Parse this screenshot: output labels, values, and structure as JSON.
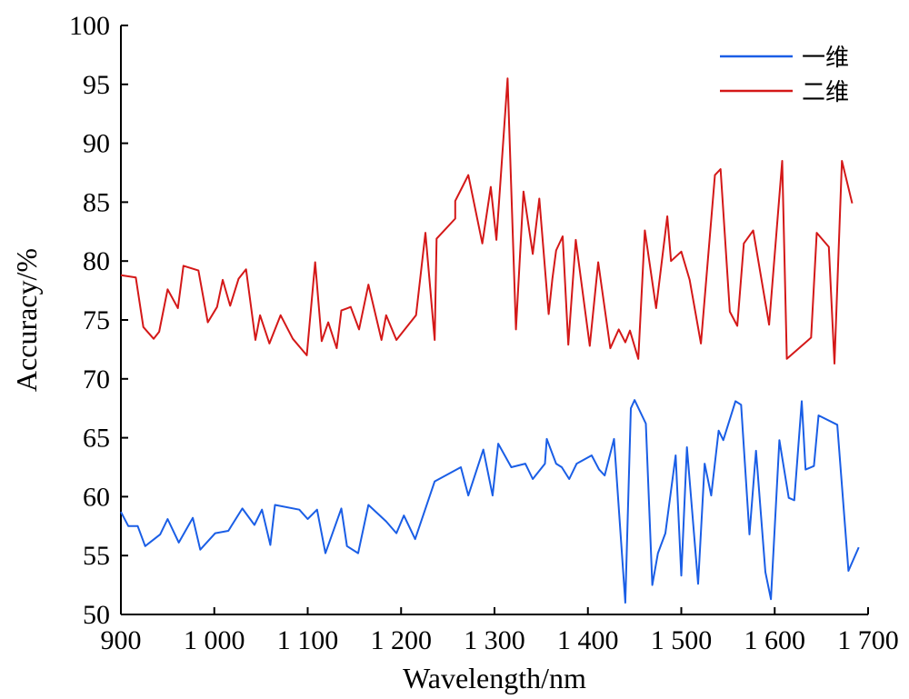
{
  "chart_data": {
    "type": "line",
    "xlabel": "Wavelength/nm",
    "ylabel": "Accuracy/%",
    "xlim": [
      900,
      1700
    ],
    "ylim": [
      50,
      100
    ],
    "x_ticks": [
      900,
      1000,
      1100,
      1200,
      1300,
      1400,
      1500,
      1600,
      1700
    ],
    "x_tick_labels": [
      "900",
      "1 000",
      "1 100",
      "1 200",
      "1 300",
      "1 400",
      "1 500",
      "1 600",
      "1 700"
    ],
    "y_ticks": [
      50,
      55,
      60,
      65,
      70,
      75,
      80,
      85,
      90,
      95,
      100
    ],
    "y_tick_labels": [
      "50",
      "55",
      "60",
      "65",
      "70",
      "75",
      "80",
      "85",
      "90",
      "95",
      "100"
    ],
    "grid": false,
    "legend_position": "top-right",
    "series": [
      {
        "name": "一维",
        "color": "#1a5ee6",
        "points": [
          [
            900,
            58.7
          ],
          [
            908,
            57.5
          ],
          [
            918,
            57.5
          ],
          [
            926,
            55.8
          ],
          [
            942,
            56.8
          ],
          [
            950,
            58.1
          ],
          [
            962,
            56.1
          ],
          [
            977,
            58.2
          ],
          [
            985,
            55.5
          ],
          [
            1001,
            56.9
          ],
          [
            1015,
            57.1
          ],
          [
            1030,
            59.0
          ],
          [
            1043,
            57.6
          ],
          [
            1051,
            58.9
          ],
          [
            1060,
            55.9
          ],
          [
            1065,
            59.3
          ],
          [
            1091,
            58.9
          ],
          [
            1100,
            58.1
          ],
          [
            1110,
            58.9
          ],
          [
            1119,
            55.2
          ],
          [
            1136,
            59.0
          ],
          [
            1142,
            55.8
          ],
          [
            1154,
            55.2
          ],
          [
            1165,
            59.3
          ],
          [
            1184,
            57.9
          ],
          [
            1195,
            56.9
          ],
          [
            1203,
            58.4
          ],
          [
            1215,
            56.4
          ],
          [
            1236,
            61.3
          ],
          [
            1264,
            62.5
          ],
          [
            1272,
            60.1
          ],
          [
            1288,
            64.0
          ],
          [
            1298,
            60.1
          ],
          [
            1304,
            64.5
          ],
          [
            1318,
            62.5
          ],
          [
            1333,
            62.8
          ],
          [
            1341,
            61.5
          ],
          [
            1354,
            62.8
          ],
          [
            1356,
            64.9
          ],
          [
            1366,
            62.8
          ],
          [
            1372,
            62.5
          ],
          [
            1380,
            61.5
          ],
          [
            1388,
            62.8
          ],
          [
            1404,
            63.5
          ],
          [
            1412,
            62.3
          ],
          [
            1418,
            61.8
          ],
          [
            1428,
            64.9
          ],
          [
            1440,
            51.0
          ],
          [
            1446,
            67.5
          ],
          [
            1450,
            68.2
          ],
          [
            1462,
            66.2
          ],
          [
            1469,
            52.5
          ],
          [
            1475,
            55.2
          ],
          [
            1483,
            56.9
          ],
          [
            1494,
            63.5
          ],
          [
            1500,
            53.3
          ],
          [
            1506,
            64.2
          ],
          [
            1518,
            52.6
          ],
          [
            1525,
            62.8
          ],
          [
            1532,
            60.1
          ],
          [
            1540,
            65.6
          ],
          [
            1545,
            64.8
          ],
          [
            1558,
            68.1
          ],
          [
            1564,
            67.8
          ],
          [
            1573,
            56.8
          ],
          [
            1580,
            63.9
          ],
          [
            1590,
            53.6
          ],
          [
            1596,
            51.3
          ],
          [
            1605,
            64.8
          ],
          [
            1615,
            59.9
          ],
          [
            1621,
            59.7
          ],
          [
            1629,
            68.1
          ],
          [
            1633,
            62.3
          ],
          [
            1642,
            62.6
          ],
          [
            1647,
            66.9
          ],
          [
            1667,
            66.1
          ],
          [
            1679,
            53.7
          ],
          [
            1690,
            55.7
          ]
        ]
      },
      {
        "name": "二维",
        "color": "#d41818",
        "points": [
          [
            900,
            78.8
          ],
          [
            916,
            78.6
          ],
          [
            924,
            74.4
          ],
          [
            935,
            73.4
          ],
          [
            941,
            74.0
          ],
          [
            950,
            77.6
          ],
          [
            961,
            76.0
          ],
          [
            967,
            79.6
          ],
          [
            983,
            79.2
          ],
          [
            993,
            74.8
          ],
          [
            1003,
            76.1
          ],
          [
            1009,
            78.4
          ],
          [
            1017,
            76.2
          ],
          [
            1026,
            78.5
          ],
          [
            1034,
            79.3
          ],
          [
            1044,
            73.3
          ],
          [
            1049,
            75.4
          ],
          [
            1059,
            73.0
          ],
          [
            1071,
            75.4
          ],
          [
            1084,
            73.4
          ],
          [
            1099,
            72.0
          ],
          [
            1108,
            79.9
          ],
          [
            1115,
            73.2
          ],
          [
            1122,
            74.8
          ],
          [
            1131,
            72.6
          ],
          [
            1136,
            75.8
          ],
          [
            1146,
            76.1
          ],
          [
            1155,
            74.2
          ],
          [
            1165,
            78.0
          ],
          [
            1179,
            73.3
          ],
          [
            1184,
            75.4
          ],
          [
            1195,
            73.3
          ],
          [
            1216,
            75.4
          ],
          [
            1226,
            82.4
          ],
          [
            1236,
            73.3
          ],
          [
            1238,
            81.9
          ],
          [
            1258,
            83.6
          ],
          [
            1258,
            85.1
          ],
          [
            1272,
            87.3
          ],
          [
            1287,
            81.5
          ],
          [
            1296,
            86.3
          ],
          [
            1302,
            81.8
          ],
          [
            1314,
            95.5
          ],
          [
            1323,
            74.2
          ],
          [
            1331,
            85.9
          ],
          [
            1341,
            80.6
          ],
          [
            1348,
            85.3
          ],
          [
            1358,
            75.5
          ],
          [
            1362,
            78.5
          ],
          [
            1366,
            80.9
          ],
          [
            1373,
            82.1
          ],
          [
            1379,
            72.9
          ],
          [
            1387,
            81.8
          ],
          [
            1402,
            72.8
          ],
          [
            1411,
            79.9
          ],
          [
            1424,
            72.6
          ],
          [
            1433,
            74.2
          ],
          [
            1440,
            73.1
          ],
          [
            1445,
            74.1
          ],
          [
            1454,
            71.7
          ],
          [
            1461,
            82.6
          ],
          [
            1473,
            76.0
          ],
          [
            1485,
            83.8
          ],
          [
            1489,
            80.0
          ],
          [
            1500,
            80.8
          ],
          [
            1509,
            78.4
          ],
          [
            1521,
            73.0
          ],
          [
            1536,
            87.3
          ],
          [
            1542,
            87.8
          ],
          [
            1552,
            75.7
          ],
          [
            1560,
            74.5
          ],
          [
            1567,
            81.5
          ],
          [
            1577,
            82.6
          ],
          [
            1594,
            74.6
          ],
          [
            1608,
            88.5
          ],
          [
            1613,
            71.7
          ],
          [
            1639,
            73.5
          ],
          [
            1645,
            82.4
          ],
          [
            1658,
            81.2
          ],
          [
            1664,
            71.3
          ],
          [
            1672,
            88.5
          ],
          [
            1683,
            84.9
          ]
        ]
      }
    ]
  }
}
